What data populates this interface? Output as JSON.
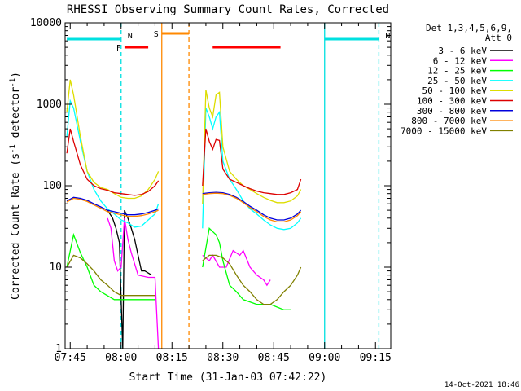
{
  "chart_data": {
    "type": "line",
    "title": "RHESSI Observing Summary Count Rates, Corrected",
    "xlabel": "Start Time (31-Jan-03 07:42:22)",
    "ylabel_main": "Corrected Count Rate (s",
    "ylabel_sup1": "-1",
    "ylabel_mid": " detector",
    "ylabel_sup2": "-1",
    "ylabel_end": ")",
    "yscale": "log",
    "ylim": [
      1,
      10000
    ],
    "xlim_min": [
      43.5,
      83.0
    ],
    "x_ticks": [
      {
        "t": 45,
        "label": "07:45"
      },
      {
        "t": 60,
        "label": "08:00"
      },
      {
        "t": 75,
        "label": "08:15"
      },
      {
        "t": 90,
        "label": "08:30"
      },
      {
        "t": 105,
        "label": "08:45"
      },
      {
        "t": 120,
        "label": "09:00"
      },
      {
        "t": 135,
        "label": "09:15"
      }
    ],
    "y_ticks": [
      {
        "v": 1,
        "label": "1"
      },
      {
        "v": 10,
        "label": "10"
      },
      {
        "v": 100,
        "label": "100"
      },
      {
        "v": 1000,
        "label": "1000"
      },
      {
        "v": 10000,
        "label": "10000"
      }
    ],
    "legend_header": [
      "Det 1,3,4,5,6,9,",
      "Att 0"
    ],
    "legend_position": "right",
    "series": [
      {
        "name": "3 - 6 keV",
        "color": "#000000",
        "points": [
          [
            56,
            50
          ],
          [
            57.5,
            40
          ],
          [
            58.5,
            30
          ],
          [
            59.5,
            20
          ],
          [
            60,
            4
          ],
          [
            60.5,
            1
          ],
          [
            61,
            50
          ],
          [
            62,
            40
          ],
          [
            63,
            30
          ],
          [
            64,
            22
          ],
          [
            65,
            14
          ],
          [
            66,
            9
          ],
          [
            67,
            9
          ],
          [
            69,
            8
          ]
        ]
      },
      {
        "name": "6 - 12 keV",
        "color": "#ff00ff",
        "points": [
          [
            56,
            40
          ],
          [
            57,
            30
          ],
          [
            58,
            12
          ],
          [
            59,
            9
          ],
          [
            60,
            10
          ],
          [
            61,
            40
          ],
          [
            62,
            22
          ],
          [
            63,
            15
          ],
          [
            64,
            11
          ],
          [
            65,
            8
          ],
          [
            68,
            7.5
          ],
          [
            70,
            7.5
          ],
          [
            71,
            1
          ],
          [
            84,
            14
          ],
          [
            86,
            12
          ],
          [
            87,
            14
          ],
          [
            89,
            10
          ],
          [
            91,
            10
          ],
          [
            93,
            16
          ],
          [
            95,
            14
          ],
          [
            96,
            16
          ],
          [
            98,
            10
          ],
          [
            100,
            8
          ],
          [
            102,
            7
          ],
          [
            103,
            6
          ],
          [
            104,
            7
          ]
        ]
      },
      {
        "name": "12 - 25 keV",
        "color": "#00ff00",
        "points": [
          [
            44,
            10
          ],
          [
            46,
            25
          ],
          [
            48,
            15
          ],
          [
            50,
            10
          ],
          [
            52,
            6
          ],
          [
            54,
            5
          ],
          [
            58,
            4
          ],
          [
            60,
            4
          ],
          [
            62,
            4
          ],
          [
            64,
            4
          ],
          [
            66,
            4
          ],
          [
            68,
            4
          ],
          [
            70,
            4
          ],
          [
            84,
            10
          ],
          [
            86,
            30
          ],
          [
            88,
            25
          ],
          [
            89,
            20
          ],
          [
            90,
            12
          ],
          [
            92,
            6
          ],
          [
            94,
            5
          ],
          [
            96,
            4
          ],
          [
            100,
            3.5
          ],
          [
            104,
            3.5
          ],
          [
            108,
            3
          ],
          [
            110,
            3
          ]
        ]
      },
      {
        "name": "25 - 50 keV",
        "color": "#00ffff",
        "points": [
          [
            44,
            400
          ],
          [
            45,
            1100
          ],
          [
            46,
            900
          ],
          [
            48,
            350
          ],
          [
            50,
            150
          ],
          [
            52,
            90
          ],
          [
            54,
            65
          ],
          [
            56,
            52
          ],
          [
            58,
            45
          ],
          [
            60,
            38
          ],
          [
            62,
            35
          ],
          [
            64,
            31
          ],
          [
            66,
            32
          ],
          [
            68,
            38
          ],
          [
            70,
            45
          ],
          [
            71,
            60
          ],
          [
            84,
            30
          ],
          [
            85,
            900
          ],
          [
            86,
            700
          ],
          [
            87,
            500
          ],
          [
            88,
            700
          ],
          [
            89,
            800
          ],
          [
            90,
            200
          ],
          [
            92,
            120
          ],
          [
            94,
            90
          ],
          [
            96,
            65
          ],
          [
            98,
            52
          ],
          [
            100,
            45
          ],
          [
            102,
            38
          ],
          [
            104,
            33
          ],
          [
            106,
            30
          ],
          [
            108,
            29
          ],
          [
            110,
            30
          ],
          [
            112,
            35
          ],
          [
            113,
            40
          ]
        ]
      },
      {
        "name": "50 - 100 keV",
        "color": "#dddd00",
        "points": [
          [
            44,
            800
          ],
          [
            45,
            2000
          ],
          [
            46,
            1300
          ],
          [
            48,
            400
          ],
          [
            50,
            150
          ],
          [
            52,
            110
          ],
          [
            54,
            95
          ],
          [
            56,
            90
          ],
          [
            58,
            80
          ],
          [
            60,
            72
          ],
          [
            62,
            70
          ],
          [
            64,
            70
          ],
          [
            66,
            75
          ],
          [
            68,
            90
          ],
          [
            70,
            120
          ],
          [
            71,
            150
          ],
          [
            84,
            60
          ],
          [
            85,
            1500
          ],
          [
            86,
            900
          ],
          [
            87,
            700
          ],
          [
            88,
            1300
          ],
          [
            89,
            1400
          ],
          [
            90,
            300
          ],
          [
            92,
            150
          ],
          [
            94,
            120
          ],
          [
            96,
            100
          ],
          [
            98,
            90
          ],
          [
            100,
            80
          ],
          [
            102,
            72
          ],
          [
            104,
            66
          ],
          [
            106,
            62
          ],
          [
            108,
            62
          ],
          [
            110,
            65
          ],
          [
            112,
            75
          ],
          [
            113,
            90
          ]
        ]
      },
      {
        "name": "100 - 300 keV",
        "color": "#dd0000",
        "points": [
          [
            44,
            250
          ],
          [
            45,
            500
          ],
          [
            46,
            350
          ],
          [
            48,
            180
          ],
          [
            50,
            120
          ],
          [
            52,
            100
          ],
          [
            54,
            92
          ],
          [
            56,
            88
          ],
          [
            58,
            82
          ],
          [
            60,
            80
          ],
          [
            62,
            78
          ],
          [
            64,
            76
          ],
          [
            66,
            78
          ],
          [
            68,
            85
          ],
          [
            70,
            100
          ],
          [
            71,
            115
          ],
          [
            84,
            100
          ],
          [
            85,
            500
          ],
          [
            86,
            350
          ],
          [
            87,
            280
          ],
          [
            88,
            370
          ],
          [
            89,
            360
          ],
          [
            90,
            160
          ],
          [
            92,
            120
          ],
          [
            94,
            110
          ],
          [
            96,
            100
          ],
          [
            98,
            92
          ],
          [
            100,
            86
          ],
          [
            102,
            82
          ],
          [
            104,
            80
          ],
          [
            106,
            78
          ],
          [
            108,
            78
          ],
          [
            110,
            82
          ],
          [
            112,
            90
          ],
          [
            113,
            120
          ]
        ]
      },
      {
        "name": "300 - 800 keV",
        "color": "#0000dd",
        "points": [
          [
            44,
            65
          ],
          [
            46,
            72
          ],
          [
            48,
            70
          ],
          [
            50,
            66
          ],
          [
            52,
            60
          ],
          [
            54,
            55
          ],
          [
            56,
            50
          ],
          [
            58,
            48
          ],
          [
            60,
            46
          ],
          [
            62,
            44
          ],
          [
            64,
            44
          ],
          [
            66,
            45
          ],
          [
            68,
            47
          ],
          [
            70,
            50
          ],
          [
            71,
            52
          ],
          [
            84,
            80
          ],
          [
            86,
            82
          ],
          [
            88,
            83
          ],
          [
            90,
            82
          ],
          [
            92,
            78
          ],
          [
            94,
            72
          ],
          [
            96,
            64
          ],
          [
            98,
            56
          ],
          [
            100,
            50
          ],
          [
            102,
            44
          ],
          [
            104,
            40
          ],
          [
            106,
            38
          ],
          [
            108,
            38
          ],
          [
            110,
            40
          ],
          [
            112,
            45
          ],
          [
            113,
            50
          ]
        ]
      },
      {
        "name": "800 - 7000 keV",
        "color": "#ff8800",
        "points": [
          [
            44,
            63
          ],
          [
            46,
            70
          ],
          [
            48,
            68
          ],
          [
            50,
            64
          ],
          [
            52,
            58
          ],
          [
            54,
            53
          ],
          [
            56,
            48
          ],
          [
            58,
            46
          ],
          [
            60,
            44
          ],
          [
            62,
            42
          ],
          [
            64,
            42
          ],
          [
            66,
            43
          ],
          [
            68,
            45
          ],
          [
            70,
            48
          ],
          [
            71,
            50
          ],
          [
            84,
            78
          ],
          [
            86,
            80
          ],
          [
            88,
            81
          ],
          [
            90,
            80
          ],
          [
            92,
            76
          ],
          [
            94,
            70
          ],
          [
            96,
            62
          ],
          [
            98,
            54
          ],
          [
            100,
            48
          ],
          [
            102,
            42
          ],
          [
            104,
            38
          ],
          [
            106,
            36
          ],
          [
            108,
            36
          ],
          [
            110,
            38
          ],
          [
            112,
            43
          ],
          [
            113,
            48
          ]
        ]
      },
      {
        "name": "7000 - 15000 keV",
        "color": "#808000",
        "points": [
          [
            44,
            10
          ],
          [
            46,
            14
          ],
          [
            48,
            13
          ],
          [
            50,
            11
          ],
          [
            52,
            9
          ],
          [
            54,
            7
          ],
          [
            56,
            6
          ],
          [
            58,
            5
          ],
          [
            60,
            4.5
          ],
          [
            62,
            4.5
          ],
          [
            64,
            4.5
          ],
          [
            66,
            4.5
          ],
          [
            68,
            4.5
          ],
          [
            70,
            4.5
          ],
          [
            84,
            12
          ],
          [
            86,
            14
          ],
          [
            88,
            14
          ],
          [
            90,
            13
          ],
          [
            92,
            11
          ],
          [
            94,
            8
          ],
          [
            96,
            6
          ],
          [
            98,
            5
          ],
          [
            100,
            4
          ],
          [
            102,
            3.5
          ],
          [
            104,
            3.5
          ],
          [
            106,
            4
          ],
          [
            108,
            5
          ],
          [
            110,
            6
          ],
          [
            112,
            8
          ],
          [
            113,
            10
          ]
        ]
      }
    ],
    "flags": [
      {
        "label": "N",
        "color": "#00e0e0",
        "t_start": 44,
        "t_end": 60
      },
      {
        "label": "N",
        "color": "#00e0e0",
        "t_start": 120,
        "t_end": 136
      },
      {
        "label": "F",
        "color": "#ff0000",
        "t_start": 61,
        "t_end": 68
      },
      {
        "label": "S",
        "color": "#ff8800",
        "t_start": 72,
        "t_end": 80
      },
      {
        "label": "",
        "color": "#ff0000",
        "t_start": 87,
        "t_end": 107
      }
    ],
    "vlines": [
      {
        "t": 60,
        "color": "#00e0e0",
        "dashed": true
      },
      {
        "t": 72,
        "color": "#ff8800",
        "dashed": false
      },
      {
        "t": 80,
        "color": "#ff8800",
        "dashed": true
      },
      {
        "t": 120,
        "color": "#00e0e0",
        "dashed": false
      },
      {
        "t": 136,
        "color": "#00e0e0",
        "dashed": true
      }
    ],
    "footer_date": "14-Oct-2021 18:46"
  }
}
